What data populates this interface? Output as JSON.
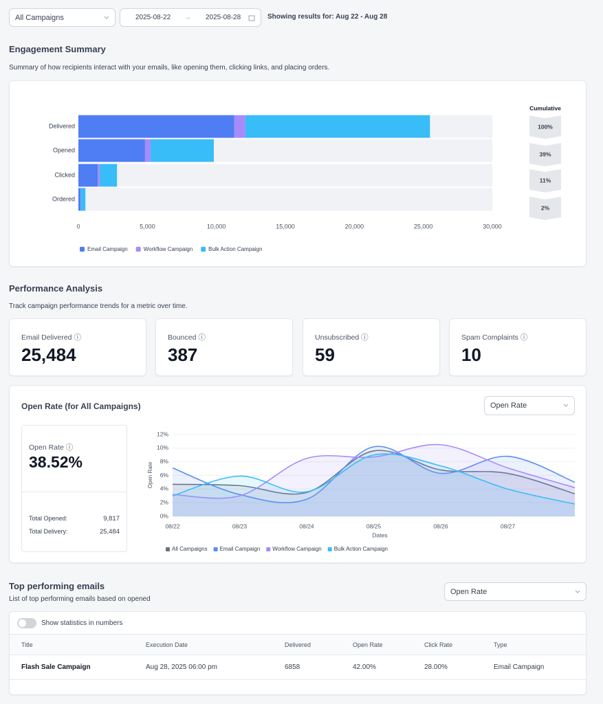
{
  "filters": {
    "campaign": "All Campaigns",
    "start_date": "2025-08-22",
    "end_date": "2025-08-28",
    "showing": "Showing results for: Aug 22 - Aug 28"
  },
  "engagement": {
    "title": "Engagement Summary",
    "description": "Summary of how recipients interact with your emails, like opening them, clicking links, and placing orders."
  },
  "performance": {
    "title": "Performance Analysis",
    "description": "Track campaign performance trends for a metric over time.",
    "cards": [
      {
        "label": "Email Delivered",
        "value": "25,484"
      },
      {
        "label": "Bounced",
        "value": "387"
      },
      {
        "label": "Unsubscribed",
        "value": "59"
      },
      {
        "label": "Spam Complaints",
        "value": "10"
      }
    ],
    "metric_select": "Open Rate",
    "summary": {
      "label": "Open Rate",
      "value": "38.52%",
      "opened_label": "Total Opened:",
      "opened": "9,817",
      "delivery_label": "Total Delivery:",
      "delivery": "25,484"
    }
  },
  "top_emails": {
    "title": "Top performing emails",
    "description": "List of top performing emails based on opened",
    "metric_select": "Open Rate",
    "toggle": "Show statistics in numbers",
    "columns": [
      "Title",
      "Execution Date",
      "Delivered",
      "Open Rate",
      "Click Rate",
      "Type"
    ],
    "rows": [
      [
        "Flash Sale Campaign",
        "Aug 28, 2025 06:00 pm",
        "6858",
        "42.00%",
        "28.00%",
        "Email Campaign"
      ]
    ]
  },
  "chart_data": [
    {
      "type": "bar",
      "orientation": "horizontal",
      "stacked": true,
      "categories": [
        "Delivered",
        "Opened",
        "Clicked",
        "Ordered"
      ],
      "series": [
        {
          "name": "Email Campaign",
          "color": "#4f7df3",
          "values": [
            11300,
            4830,
            1400,
            150
          ]
        },
        {
          "name": "Workflow Campaign",
          "color": "#a78bfa",
          "values": [
            800,
            400,
            150,
            30
          ]
        },
        {
          "name": "Bulk Action Campaign",
          "color": "#38bdf8",
          "values": [
            13384,
            4587,
            1250,
            330
          ]
        }
      ],
      "xlim": [
        0,
        30000
      ],
      "xticks": [
        0,
        {
          "value": 5000,
          "label": "5,000"
        },
        {
          "value": 10000,
          "label": "10,000"
        },
        {
          "value": 15000,
          "label": "15,000"
        },
        {
          "value": 20000,
          "label": "20,000"
        },
        {
          "value": 25000,
          "label": "25,000"
        },
        {
          "value": 30000,
          "label": "30,000"
        }
      ],
      "cumulative_title": "Cumulative",
      "cumulative_labels": [
        "100%",
        "39%",
        "11%",
        "2%"
      ]
    },
    {
      "type": "line",
      "title": "Open Rate (for All Campaigns)",
      "x_label": "Dates",
      "y_label": "Open Rate",
      "smooth": true,
      "area": true,
      "grid": true,
      "categories": [
        "08/22",
        "08/23",
        "08/24",
        "08/25",
        "08/26",
        "08/27",
        null
      ],
      "series": [
        {
          "name": "All Campaigns",
          "color": "#6b7280",
          "values": [
            4.7,
            4.5,
            3.5,
            9.6,
            6.8,
            6.3,
            3.3
          ]
        },
        {
          "name": "Email Campaign",
          "color": "#5b8def",
          "values": [
            7.1,
            3.2,
            2.5,
            10.2,
            6.3,
            8.8,
            5.0
          ]
        },
        {
          "name": "Workflow Campaign",
          "color": "#a78bfa",
          "values": [
            3.2,
            3.0,
            8.5,
            8.7,
            10.5,
            7.1,
            4.2
          ]
        },
        {
          "name": "Bulk Action Campaign",
          "color": "#38bdf8",
          "values": [
            3.0,
            5.9,
            3.6,
            9.0,
            7.4,
            4.0,
            1.8
          ]
        }
      ],
      "ylim": [
        0,
        12
      ],
      "yticks": [
        {
          "value": 0,
          "label": "0%"
        },
        {
          "value": 2,
          "label": "2%"
        },
        {
          "value": 4,
          "label": "4%"
        },
        {
          "value": 6,
          "label": "6%"
        },
        {
          "value": 8,
          "label": "8%"
        },
        {
          "value": 10,
          "label": "10%"
        },
        {
          "value": 12,
          "label": "12%"
        }
      ]
    }
  ]
}
